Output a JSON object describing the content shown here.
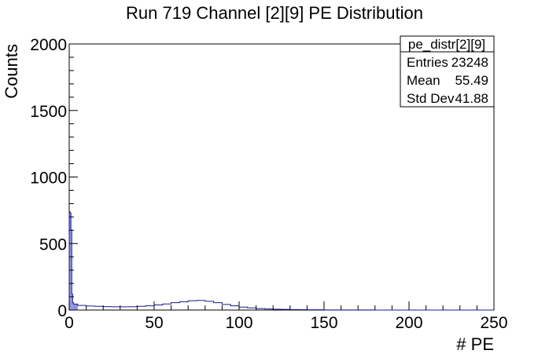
{
  "chart_data": {
    "type": "histogram",
    "title": "Run 719 Channel [2][9] PE Distribution",
    "xlabel": "# PE",
    "ylabel": "Counts",
    "xlim": [
      0,
      250
    ],
    "ylim": [
      0,
      2000
    ],
    "x_ticks": [
      "0",
      "50",
      "100",
      "150",
      "200",
      "250"
    ],
    "y_ticks": [
      "0",
      "500",
      "1000",
      "1500",
      "2000"
    ],
    "line_color": "#1a1a8c",
    "fill_color": "#8c8ce0",
    "stats_box": {
      "name": "pe_distr[2][9]",
      "rows": [
        {
          "label": "Entries",
          "value": "23248"
        },
        {
          "label": "Mean",
          "value": "55.49"
        },
        {
          "label": "Std Dev",
          "value": "41.88"
        }
      ]
    },
    "series": [
      {
        "bin_edges": [
          0,
          0.5,
          1,
          1.5,
          2,
          2.5,
          5,
          10,
          15,
          20,
          25,
          30,
          35,
          40,
          45,
          50,
          55,
          60,
          65,
          70,
          75,
          80,
          85,
          90,
          95,
          100,
          105,
          110,
          115,
          120,
          125,
          130,
          135,
          140,
          145,
          150,
          160,
          170,
          180,
          190,
          200,
          250
        ],
        "counts": [
          740,
          730,
          600,
          120,
          55,
          45,
          35,
          30,
          28,
          26,
          24,
          24,
          25,
          28,
          32,
          38,
          46,
          55,
          62,
          70,
          72,
          66,
          55,
          42,
          32,
          22,
          16,
          11,
          8,
          6,
          5,
          4,
          3,
          2,
          2,
          1,
          1,
          1,
          0,
          0,
          0
        ]
      }
    ]
  }
}
